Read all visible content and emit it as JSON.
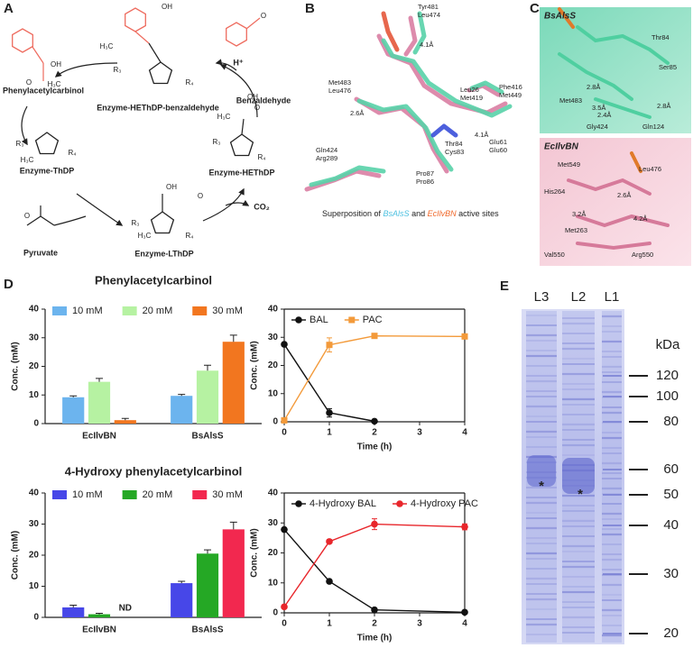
{
  "panels": {
    "A": {
      "label": "A",
      "names": [
        "Phenylacetylcarbinol",
        "Enzyme-HEThDP-benzaldehyde",
        "Benzaldehyde",
        "H⁺",
        "Enzyme-ThDP",
        "Enzyme-HEThDP",
        "Pyruvate",
        "Enzyme-LThDP",
        "CO₂"
      ],
      "atoms": [
        "OH",
        "H₃C",
        "R₃",
        "R₄",
        "OH",
        "O",
        "H₃C",
        "O",
        "R₃",
        "R₄",
        "H₃C",
        "OH",
        "R₃",
        "R₄",
        "H₃C",
        "O",
        "O",
        "OH",
        "R₃",
        "R₄",
        "H₃C",
        "O"
      ]
    },
    "B": {
      "label": "B",
      "residues": [
        [
          "Tyr481",
          "Leu474"
        ],
        [
          "Met483",
          "Leu476"
        ],
        [
          "Leu26",
          "Met419"
        ],
        [
          "Phe416",
          "Met449"
        ],
        [
          "Gln424",
          "Arg289"
        ],
        [
          "Thr84",
          "Cys83"
        ],
        [
          "Glu61",
          "Glu60"
        ],
        [
          "Pro87",
          "Pro86"
        ]
      ],
      "residue_colors": [
        "#4fc1e0",
        "#f0682a"
      ],
      "distances": [
        "4.1Å",
        "2.6Å",
        "4.1Å"
      ],
      "caption": [
        "Superposition of ",
        "BsAlsS",
        " and ",
        "EcIlvBN",
        " active sites"
      ]
    },
    "C": {
      "label": "C",
      "top": {
        "title": "BsAlsS",
        "labels": [
          {
            "text": "Thr84",
            "color": "#222"
          },
          {
            "text": "Ser85",
            "color": "#222"
          },
          {
            "text": "Met483",
            "color": "#222"
          },
          {
            "text": "2.8Å",
            "color": "#222"
          },
          {
            "text": "3.5Å",
            "color": "#e8312a"
          },
          {
            "text": "2.8Å",
            "color": "#222"
          },
          {
            "text": "2.4Å",
            "color": "#222"
          },
          {
            "text": "Gly424",
            "color": "#222"
          },
          {
            "text": "Gln124",
            "color": "#222"
          }
        ]
      },
      "bottom": {
        "title": "EcIlvBN",
        "labels": [
          {
            "text": "Met549",
            "color": "#222"
          },
          {
            "text": "Leu476",
            "color": "#222"
          },
          {
            "text": "His264",
            "color": "#222"
          },
          {
            "text": "2.6Å",
            "color": "#222"
          },
          {
            "text": "3.2Å",
            "color": "#222"
          },
          {
            "text": "4.2Å",
            "color": "#e8312a"
          },
          {
            "text": "Met263",
            "color": "#222"
          },
          {
            "text": "Val550",
            "color": "#222"
          },
          {
            "text": "Arg550",
            "color": "#222"
          }
        ]
      }
    },
    "D": {
      "label": "D"
    },
    "E": {
      "label": "E",
      "lanes": [
        "L3",
        "L2",
        "L1"
      ],
      "unit": "kDa",
      "markers": [
        120,
        100,
        80,
        60,
        50,
        40,
        30,
        20
      ],
      "marks": [
        "*",
        "*"
      ]
    }
  },
  "chart_data": [
    {
      "type": "bar",
      "title": "Phenylacetylcarbinol",
      "y_label": "Conc. (mM)",
      "categories": [
        "EcIlvBN",
        "BsAlsS"
      ],
      "series": [
        {
          "name": "10 mM",
          "color": "#6cb4ee",
          "values": [
            9.2,
            9.7
          ],
          "errors": [
            0.5,
            0.5
          ]
        },
        {
          "name": "20 mM",
          "color": "#b6f2a2",
          "values": [
            14.6,
            18.5
          ],
          "errors": [
            1.2,
            1.9
          ]
        },
        {
          "name": "30 mM",
          "color": "#f2761f",
          "values": [
            1.2,
            28.6
          ],
          "errors": [
            0.6,
            2.3
          ]
        }
      ],
      "ylim": [
        0,
        40
      ],
      "yticks": [
        0,
        10,
        20,
        30,
        40
      ],
      "legend": "top"
    },
    {
      "type": "line",
      "y_label": "Conc. (mM)",
      "x_label": "Time (h)",
      "x": [
        0,
        1,
        2,
        4
      ],
      "series": [
        {
          "name": "BAL",
          "color": "#111111",
          "marker": "circle",
          "values": [
            27.5,
            3.2,
            0.2,
            null
          ],
          "errors": [
            0,
            1.5,
            0,
            null
          ]
        },
        {
          "name": "PAC",
          "color": "#f39a3a",
          "marker": "square",
          "values": [
            0.5,
            27.3,
            30.5,
            30.3
          ],
          "errors": [
            0,
            2.5,
            0.5,
            0.8
          ]
        }
      ],
      "xlim": [
        0,
        4
      ],
      "xticks": [
        0,
        1,
        2,
        3,
        4
      ],
      "ylim": [
        0,
        40
      ],
      "yticks": [
        0,
        10,
        20,
        30,
        40
      ],
      "legend": "top"
    },
    {
      "type": "bar",
      "title": "4-Hydroxy phenylacetylcarbinol",
      "y_label": "Conc. (mM)",
      "categories": [
        "EcIlvBN",
        "BsAlsS"
      ],
      "series": [
        {
          "name": "10 mM",
          "color": "#4747e8",
          "values": [
            3.2,
            11.0
          ],
          "errors": [
            0.7,
            0.6
          ]
        },
        {
          "name": "20 mM",
          "color": "#25a825",
          "values": [
            1.0,
            20.5
          ],
          "errors": [
            0.3,
            1.2
          ]
        },
        {
          "name": "30 mM",
          "color": "#f2284f",
          "values": [
            null,
            28.3
          ],
          "value_labels": [
            "ND",
            null
          ],
          "errors": [
            null,
            2.3
          ]
        }
      ],
      "ylim": [
        0,
        40
      ],
      "yticks": [
        0,
        10,
        20,
        30,
        40
      ],
      "legend": "top"
    },
    {
      "type": "line",
      "y_label": "Conc. (mM)",
      "x_label": "Time (h)",
      "x": [
        0,
        1,
        2,
        4
      ],
      "series": [
        {
          "name": "4-Hydroxy BAL",
          "color": "#111111",
          "marker": "circle",
          "values": [
            27.8,
            10.5,
            1.0,
            0.2
          ],
          "errors": [
            0,
            0.3,
            0.6,
            0
          ]
        },
        {
          "name": "4-Hydroxy PAC",
          "color": "#e8262b",
          "marker": "circle",
          "values": [
            2.0,
            23.8,
            29.6,
            28.7
          ],
          "errors": [
            0,
            0.5,
            1.8,
            1.0
          ]
        }
      ],
      "xlim": [
        0,
        4
      ],
      "xticks": [
        0,
        1,
        2,
        3,
        4
      ],
      "ylim": [
        0,
        40
      ],
      "yticks": [
        0,
        10,
        20,
        30,
        40
      ],
      "legend": "top"
    }
  ]
}
